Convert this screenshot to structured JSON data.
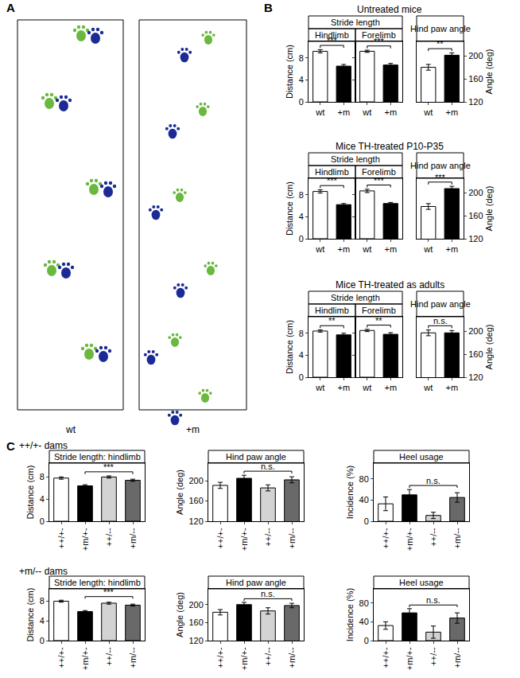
{
  "panel_labels": [
    "A",
    "B",
    "C"
  ],
  "panel_a": {
    "labels": [
      "wt",
      "+m"
    ]
  },
  "chart_data": [
    {
      "type": "bar",
      "section": "Untreated mice",
      "header": "Stride length",
      "title": "Hindlimb",
      "ylabel": "Distance (cm)",
      "categories": [
        "wt",
        "+m"
      ],
      "values": [
        9.2,
        6.5
      ],
      "errors": [
        0.3,
        0.3
      ],
      "colors": [
        "#ffffff",
        "#000000"
      ],
      "ylim": [
        0,
        11
      ],
      "yticks": [
        0,
        4,
        8
      ],
      "significance": {
        "between": [
          "wt",
          "+m"
        ],
        "label": "***"
      }
    },
    {
      "type": "bar",
      "section": "Untreated mice",
      "header": "Stride length",
      "title": "Forelimb",
      "tick_labels": "x",
      "categories": [
        "wt",
        "+m"
      ],
      "values": [
        9.2,
        6.7
      ],
      "errors": [
        0.2,
        0.3
      ],
      "colors": [
        "#ffffff",
        "#000000"
      ],
      "ylim": [
        0,
        11
      ],
      "yticks": [
        0,
        4,
        8
      ],
      "significance": {
        "between": [
          "wt",
          "+m"
        ],
        "label": "***"
      }
    },
    {
      "type": "bar",
      "section": "Untreated mice",
      "title": "Hind paw angle",
      "ylabel": "Angle (deg)",
      "categories": [
        "wt",
        "+m"
      ],
      "values": [
        180,
        201
      ],
      "errors": [
        5,
        4
      ],
      "colors": [
        "#ffffff",
        "#000000"
      ],
      "ylim": [
        120,
        225
      ],
      "yticks": [
        120,
        160,
        200
      ],
      "significance": {
        "between": [
          "wt",
          "+m"
        ],
        "label": "**"
      }
    },
    {
      "type": "bar",
      "section": "Mice TH-treated P10-P35",
      "header": "Stride length",
      "title": "Hindlimb",
      "ylabel": "Distance (cm)",
      "categories": [
        "wt",
        "+m"
      ],
      "values": [
        8.6,
        6.2
      ],
      "errors": [
        0.3,
        0.2
      ],
      "colors": [
        "#ffffff",
        "#000000"
      ],
      "ylim": [
        0,
        11
      ],
      "yticks": [
        0,
        4,
        8
      ],
      "significance": {
        "between": [
          "wt",
          "+m"
        ],
        "label": "***"
      }
    },
    {
      "type": "bar",
      "section": "Mice TH-treated P10-P35",
      "header": "Stride length",
      "title": "Forelimb",
      "tick_labels": "x",
      "categories": [
        "wt",
        "+m"
      ],
      "values": [
        8.7,
        6.4
      ],
      "errors": [
        0.3,
        0.2
      ],
      "colors": [
        "#ffffff",
        "#000000"
      ],
      "ylim": [
        0,
        11
      ],
      "yticks": [
        0,
        4,
        8
      ],
      "significance": {
        "between": [
          "wt",
          "+m"
        ],
        "label": "***"
      }
    },
    {
      "type": "bar",
      "section": "Mice TH-treated P10-P35",
      "title": "Hind paw angle",
      "ylabel": "Angle (deg)",
      "categories": [
        "wt",
        "+m"
      ],
      "values": [
        176,
        207
      ],
      "errors": [
        5,
        4
      ],
      "colors": [
        "#ffffff",
        "#000000"
      ],
      "ylim": [
        120,
        225
      ],
      "yticks": [
        120,
        160,
        200
      ],
      "significance": {
        "between": [
          "wt",
          "+m"
        ],
        "label": "***"
      }
    },
    {
      "type": "bar",
      "section": "Mice TH-treated as adults",
      "header": "Stride length",
      "title": "Hindlimb",
      "ylabel": "Distance (cm)",
      "categories": [
        "wt",
        "+m"
      ],
      "values": [
        8.4,
        7.7
      ],
      "errors": [
        0.2,
        0.3
      ],
      "colors": [
        "#ffffff",
        "#000000"
      ],
      "ylim": [
        0,
        11
      ],
      "yticks": [
        0,
        4,
        8
      ],
      "significance": {
        "between": [
          "wt",
          "+m"
        ],
        "label": "**"
      }
    },
    {
      "type": "bar",
      "section": "Mice TH-treated as adults",
      "header": "Stride length",
      "title": "Forelimb",
      "tick_labels": "x",
      "categories": [
        "wt",
        "+m"
      ],
      "values": [
        8.5,
        7.8
      ],
      "errors": [
        0.2,
        0.3
      ],
      "colors": [
        "#ffffff",
        "#000000"
      ],
      "ylim": [
        0,
        11
      ],
      "yticks": [
        0,
        4,
        8
      ],
      "significance": {
        "between": [
          "wt",
          "+m"
        ],
        "label": "**"
      }
    },
    {
      "type": "bar",
      "section": "Mice TH-treated as adults",
      "title": "Hind paw angle",
      "ylabel": "Angle (deg)",
      "categories": [
        "wt",
        "+m"
      ],
      "values": [
        197,
        197
      ],
      "errors": [
        5,
        4
      ],
      "colors": [
        "#ffffff",
        "#000000"
      ],
      "ylim": [
        120,
        225
      ],
      "yticks": [
        120,
        160,
        200
      ],
      "significance": {
        "between": [
          "wt",
          "+m"
        ],
        "label": "n.s."
      }
    },
    {
      "type": "bar",
      "section": "++/+- dams",
      "title": "Stride length: hindlimb",
      "ylabel": "Distance (cm)",
      "categories": [
        "++/+-",
        "+m/+-",
        "++/--",
        "+m/--"
      ],
      "values": [
        7.8,
        6.4,
        8.0,
        7.4
      ],
      "errors": [
        0.2,
        0.2,
        0.2,
        0.2
      ],
      "colors": [
        "#ffffff",
        "#000000",
        "#d3d3d3",
        "#696969"
      ],
      "ylim": [
        0,
        10.5
      ],
      "yticks": [
        0,
        4,
        8
      ],
      "significance": {
        "between": [
          "+m/+-",
          "+m/--"
        ],
        "label": "***"
      }
    },
    {
      "type": "bar",
      "section": "++/+- dams",
      "title": "Hind paw angle",
      "ylabel": "Angle (deg)",
      "categories": [
        "++/+-",
        "+m/+-",
        "++/--",
        "+m/--"
      ],
      "values": [
        191,
        205,
        186,
        202
      ],
      "errors": [
        6,
        6,
        6,
        6
      ],
      "colors": [
        "#ffffff",
        "#000000",
        "#d3d3d3",
        "#696969"
      ],
      "ylim": [
        120,
        235
      ],
      "yticks": [
        120,
        160,
        200
      ],
      "significance": {
        "between": [
          "+m/+-",
          "+m/--"
        ],
        "label": "n.s."
      }
    },
    {
      "type": "bar",
      "section": "++/+- dams",
      "title": "Heel usage",
      "ylabel": "Incidence (%)",
      "categories": [
        "++/+-",
        "+m/+-",
        "++/--",
        "+m/--"
      ],
      "values": [
        33,
        50,
        11,
        45
      ],
      "errors": [
        13,
        10,
        6,
        9
      ],
      "colors": [
        "#ffffff",
        "#000000",
        "#d3d3d3",
        "#696969"
      ],
      "ylim": [
        0,
        110
      ],
      "yticks": [
        0,
        40,
        80
      ],
      "significance": {
        "between": [
          "+m/+-",
          "+m/--"
        ],
        "label": "n.s."
      }
    },
    {
      "type": "bar",
      "section": "+m/-- dams",
      "title": "Stride length: hindlimb",
      "ylabel": "Distance (cm)",
      "categories": [
        "++/+-",
        "+m/+-",
        "++/--",
        "+m/--"
      ],
      "values": [
        8.0,
        5.9,
        7.6,
        7.2
      ],
      "errors": [
        0.2,
        0.2,
        0.2,
        0.2
      ],
      "colors": [
        "#ffffff",
        "#000000",
        "#d3d3d3",
        "#696969"
      ],
      "ylim": [
        0,
        10.5
      ],
      "yticks": [
        0,
        4,
        8
      ],
      "significance": {
        "between": [
          "+m/+-",
          "+m/--"
        ],
        "label": "***"
      }
    },
    {
      "type": "bar",
      "section": "+m/-- dams",
      "title": "Hind paw angle",
      "ylabel": "Angle (deg)",
      "categories": [
        "++/+-",
        "+m/+-",
        "++/--",
        "+m/--"
      ],
      "values": [
        183,
        200,
        186,
        198
      ],
      "errors": [
        6,
        5,
        7,
        5
      ],
      "colors": [
        "#ffffff",
        "#000000",
        "#d3d3d3",
        "#696969"
      ],
      "ylim": [
        120,
        235
      ],
      "yticks": [
        120,
        160,
        200
      ],
      "significance": {
        "between": [
          "+m/+-",
          "+m/--"
        ],
        "label": "n.s."
      }
    },
    {
      "type": "bar",
      "section": "+m/-- dams",
      "title": "Heel usage",
      "ylabel": "Incidence (%)",
      "categories": [
        "++/+-",
        "+m/+-",
        "++/--",
        "+m/--"
      ],
      "values": [
        32,
        59,
        18,
        48
      ],
      "errors": [
        8,
        9,
        13,
        11
      ],
      "colors": [
        "#ffffff",
        "#000000",
        "#d3d3d3",
        "#696969"
      ],
      "ylim": [
        0,
        110
      ],
      "yticks": [
        0,
        40,
        80
      ],
      "significance": {
        "between": [
          "+m/+-",
          "+m/--"
        ],
        "label": "n.s."
      }
    }
  ]
}
